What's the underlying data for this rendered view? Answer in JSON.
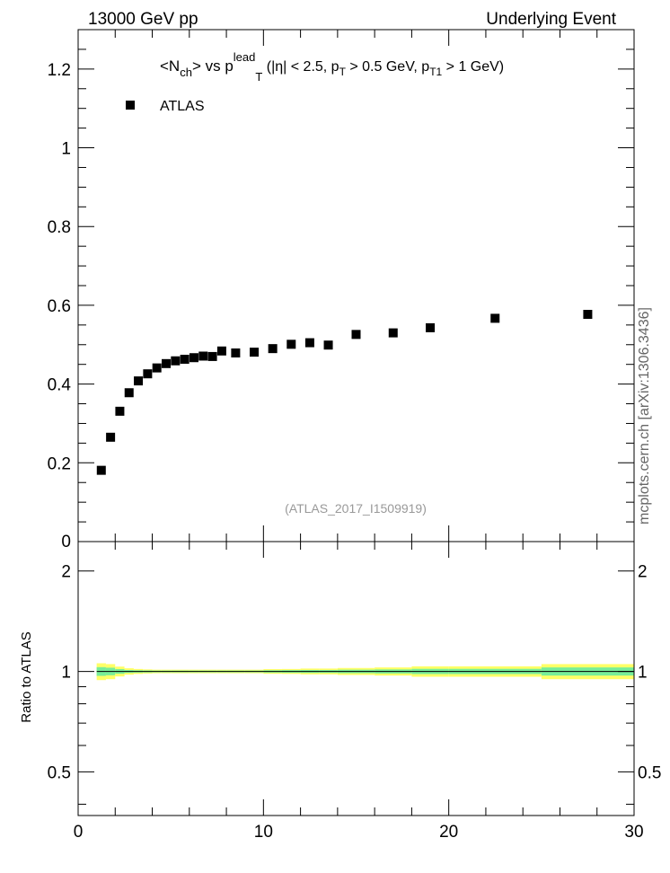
{
  "header": {
    "left": "13000 GeV pp",
    "right": "Underlying Event"
  },
  "side_label": "mcplots.cern.ch [arXiv:1306.3436]",
  "chart_data": [
    {
      "type": "scatter",
      "title_parts": {
        "lhs": "<N",
        "lhs_sub": "ch",
        "mid": "> vs p",
        "mid_sup": "lead",
        "mid_sub": "T",
        "cut1": " (|η| < 2.5, p",
        "cut1_sub": "T",
        "cut2": " > 0.5 GeV, p",
        "cut2_sub": "T1",
        "cut3": " > 1 GeV)"
      },
      "analysis_tag": "(ATLAS_2017_I1509919)",
      "legend": {
        "placement": "top-left",
        "entries": [
          "ATLAS"
        ]
      },
      "xlim": [
        0,
        30
      ],
      "ylim": [
        0,
        1.3
      ],
      "y_ticks": [
        0.2,
        0.4,
        0.6,
        0.8,
        1,
        1.2
      ],
      "y_tick_labels": [
        "0.2",
        "0.4",
        "0.6",
        "0.8",
        "1",
        "1.2"
      ],
      "y_bottom_clip_label": "0",
      "series": [
        {
          "name": "ATLAS",
          "color": "#000000",
          "marker": "square",
          "x": [
            1.25,
            1.75,
            2.25,
            2.75,
            3.25,
            3.75,
            4.25,
            4.75,
            5.25,
            5.75,
            6.25,
            6.75,
            7.25,
            7.75,
            8.5,
            9.5,
            10.5,
            11.5,
            12.5,
            13.5,
            15.0,
            17.0,
            19.0,
            22.5,
            27.5
          ],
          "y": [
            0.181,
            0.265,
            0.331,
            0.378,
            0.408,
            0.426,
            0.441,
            0.452,
            0.459,
            0.463,
            0.467,
            0.471,
            0.47,
            0.484,
            0.479,
            0.481,
            0.49,
            0.501,
            0.505,
            0.499,
            0.526,
            0.53,
            0.543,
            0.567,
            0.577
          ]
        }
      ]
    },
    {
      "type": "area",
      "ylabel": "Ratio to ATLAS",
      "xlim": [
        0,
        30
      ],
      "ylim": [
        0.37,
        2.45
      ],
      "y_ticks": [
        0.5,
        1,
        2
      ],
      "y_tick_labels": [
        "0.5",
        "1",
        "2"
      ],
      "x_ticks": [
        0,
        10,
        20,
        30
      ],
      "x_tick_labels": [
        "0",
        "10",
        "20",
        "30"
      ],
      "bands": {
        "bin_edges": [
          1.0,
          1.5,
          2.0,
          2.5,
          3.0,
          3.5,
          4.0,
          4.5,
          5.0,
          5.5,
          6.0,
          6.5,
          7.0,
          7.5,
          8.0,
          9.0,
          10.0,
          11.0,
          12.0,
          13.0,
          14.0,
          16.0,
          18.0,
          20.0,
          25.0,
          30.0
        ],
        "yellow_halfwidth": [
          0.058,
          0.052,
          0.034,
          0.022,
          0.017,
          0.014,
          0.012,
          0.012,
          0.012,
          0.012,
          0.012,
          0.012,
          0.012,
          0.012,
          0.012,
          0.012,
          0.016,
          0.017,
          0.02,
          0.02,
          0.024,
          0.028,
          0.036,
          0.036,
          0.052
        ],
        "green_halfwidth": [
          0.03,
          0.026,
          0.016,
          0.01,
          0.008,
          0.007,
          0.006,
          0.006,
          0.006,
          0.006,
          0.006,
          0.006,
          0.006,
          0.006,
          0.006,
          0.006,
          0.008,
          0.009,
          0.01,
          0.01,
          0.012,
          0.014,
          0.018,
          0.018,
          0.028
        ],
        "yellow_color": "#ffff66",
        "green_color": "#77ee99"
      }
    }
  ]
}
